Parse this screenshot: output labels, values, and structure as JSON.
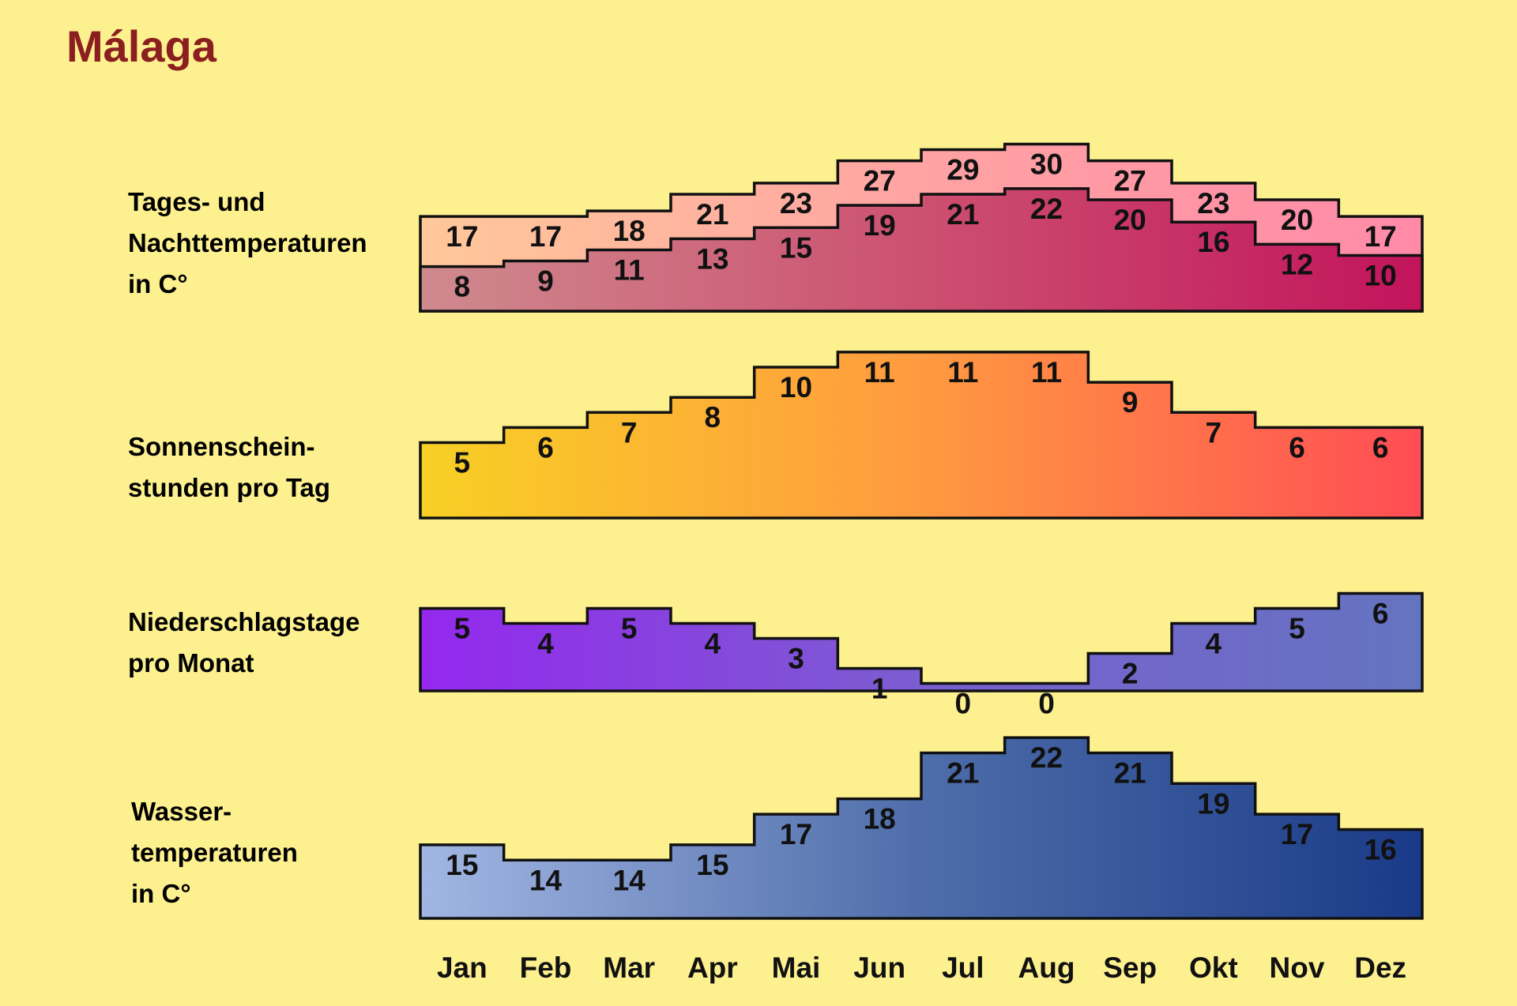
{
  "title": "Málaga",
  "chart_data": {
    "type": "area",
    "categories": [
      "Jan",
      "Feb",
      "Mar",
      "Apr",
      "Mai",
      "Jun",
      "Jul",
      "Aug",
      "Sep",
      "Okt",
      "Nov",
      "Dez"
    ],
    "panels": [
      {
        "id": "temp",
        "label_lines": [
          "Tages- und",
          "Nachttemperaturen",
          "in C°"
        ],
        "series": [
          {
            "values": [
              17,
              17,
              18,
              21,
              23,
              27,
              29,
              30,
              27,
              23,
              20,
              17
            ],
            "gradient": [
              "#ffc89a",
              "#ffa3a3",
              "#ff8aa8"
            ]
          },
          {
            "values": [
              8,
              9,
              11,
              13,
              15,
              19,
              21,
              22,
              20,
              16,
              12,
              10
            ],
            "gradient": [
              "#cf8a8e",
              "#cc5070",
              "#c2145c"
            ]
          }
        ]
      },
      {
        "id": "sun",
        "label_lines": [
          "Sonnenschein-",
          "stunden pro Tag"
        ],
        "series": [
          {
            "values": [
              5,
              6,
              7,
              8,
              10,
              11,
              11,
              11,
              9,
              7,
              6,
              6
            ],
            "gradient": [
              "#f8d024",
              "#ff9a40",
              "#ff4c55"
            ]
          }
        ]
      },
      {
        "id": "rain",
        "label_lines": [
          "Niederschlagstage",
          "pro Monat"
        ],
        "series": [
          {
            "values": [
              5,
              4,
              5,
              4,
              3,
              1,
              0,
              0,
              2,
              4,
              5,
              6
            ],
            "gradient": [
              "#9428ee",
              "#7b5ed0",
              "#6474c0"
            ]
          }
        ]
      },
      {
        "id": "water",
        "label_lines": [
          "Wasser-",
          "temperaturen",
          "in C°"
        ],
        "series": [
          {
            "values": [
              15,
              14,
              14,
              15,
              17,
              18,
              21,
              22,
              21,
              19,
              17,
              16
            ],
            "gradient": [
              "#a2b6e2",
              "#4e6daa",
              "#1a3a88"
            ]
          }
        ]
      }
    ]
  }
}
